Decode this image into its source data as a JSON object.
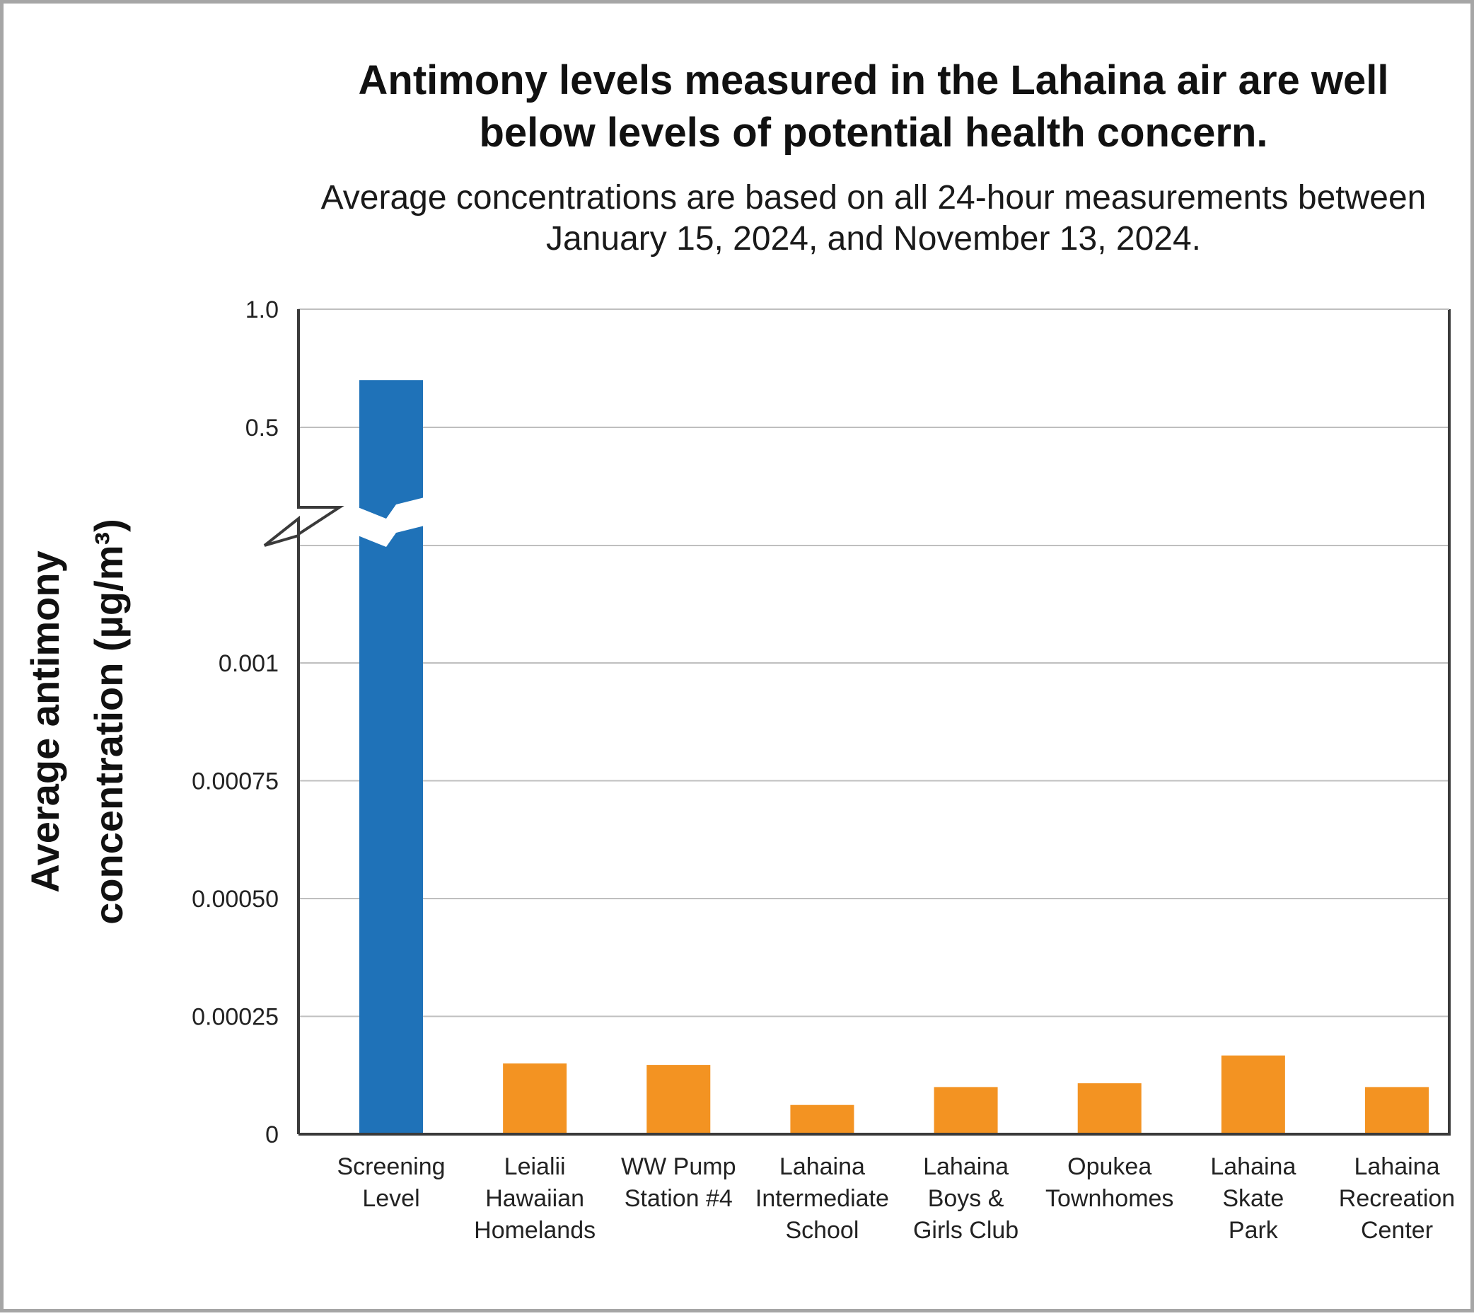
{
  "title": "Antimony levels measured in the Lahaina air are well below levels of potential health concern.",
  "subtitle": "Average concentrations are based on all 24-hour measurements between January 15, 2024, and November 13, 2024.",
  "colors": {
    "screening": "#1f72b8",
    "measured": "#f39322",
    "axis": "#3a3a3a",
    "grid": "#bfbfbf",
    "frame": "#a6a6a6"
  },
  "chart_data": {
    "type": "bar",
    "title": "Antimony levels measured in the Lahaina air are well below levels of potential health concern.",
    "subtitle": "Average concentrations are based on all 24-hour measurements between January 15, 2024, and November 13, 2024.",
    "ylabel_lines": [
      "Average antimony",
      "concentration (µg/m³)"
    ],
    "xlabel": "",
    "axis_break": true,
    "lower_segment": {
      "ylim": [
        0,
        0.001
      ],
      "ticks": [
        "0",
        "0.00025",
        "0.00050",
        "0.00075",
        "0.001"
      ]
    },
    "upper_segment": {
      "ylim": [
        0.5,
        1.0
      ],
      "ticks": [
        "0.5",
        "1.0"
      ]
    },
    "grid": true,
    "legend": "none",
    "categories": [
      [
        "Screening",
        "Level"
      ],
      [
        "Leialii",
        "Hawaiian",
        "Homelands"
      ],
      [
        "WW Pump",
        "Station #4"
      ],
      [
        "Lahaina",
        "Intermediate",
        "School"
      ],
      [
        "Lahaina",
        "Boys &",
        "Girls Club"
      ],
      [
        "Opukea",
        "Townhomes"
      ],
      [
        "Lahaina",
        "Skate",
        "Park"
      ],
      [
        "Lahaina",
        "Recreation",
        "Center"
      ]
    ],
    "values": [
      0.7,
      0.00015,
      0.000147,
      6.2e-05,
      0.0001,
      0.000108,
      0.000167,
      0.0001
    ],
    "bar_colors": [
      "screening",
      "measured",
      "measured",
      "measured",
      "measured",
      "measured",
      "measured",
      "measured"
    ]
  }
}
